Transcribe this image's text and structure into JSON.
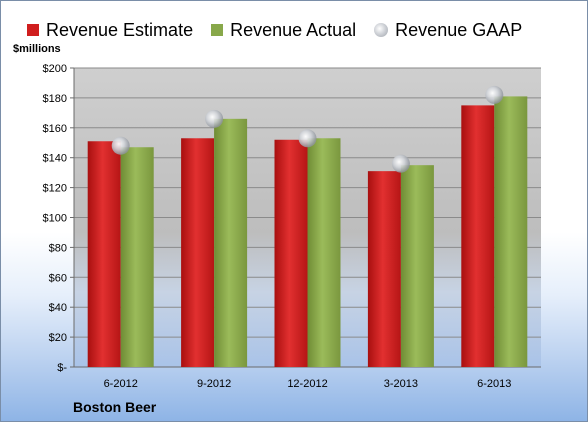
{
  "legend": {
    "estimate_label": "Revenue Estimate",
    "actual_label": "Revenue Actual",
    "gaap_label": "Revenue GAAP"
  },
  "unit_label": "$millions",
  "company_label": "Boston Beer",
  "colors": {
    "estimate": "#d01e1e",
    "actual": "#88a84a",
    "gaap": "#b7bbc2",
    "plot_background": "#c8c8c8"
  },
  "chart_data": {
    "type": "bar",
    "categories": [
      "6-2012",
      "9-2012",
      "12-2012",
      "3-2013",
      "6-2013"
    ],
    "series": [
      {
        "name": "Revenue Estimate",
        "values": [
          151,
          153,
          152,
          131,
          175
        ]
      },
      {
        "name": "Revenue Actual",
        "values": [
          147,
          166,
          153,
          135,
          181
        ]
      },
      {
        "name": "Revenue GAAP",
        "type": "scatter",
        "values": [
          148,
          166,
          153,
          136,
          182
        ]
      }
    ],
    "ylim": [
      0,
      200
    ],
    "yticks": [
      0,
      20,
      40,
      60,
      80,
      100,
      120,
      140,
      160,
      180,
      200
    ],
    "ytick_labels": [
      "$-",
      "$20",
      "$40",
      "$60",
      "$80",
      "$100",
      "$120",
      "$140",
      "$160",
      "$180",
      "$200"
    ],
    "ylabel": "$millions",
    "grid": true,
    "legend_position": "top"
  }
}
